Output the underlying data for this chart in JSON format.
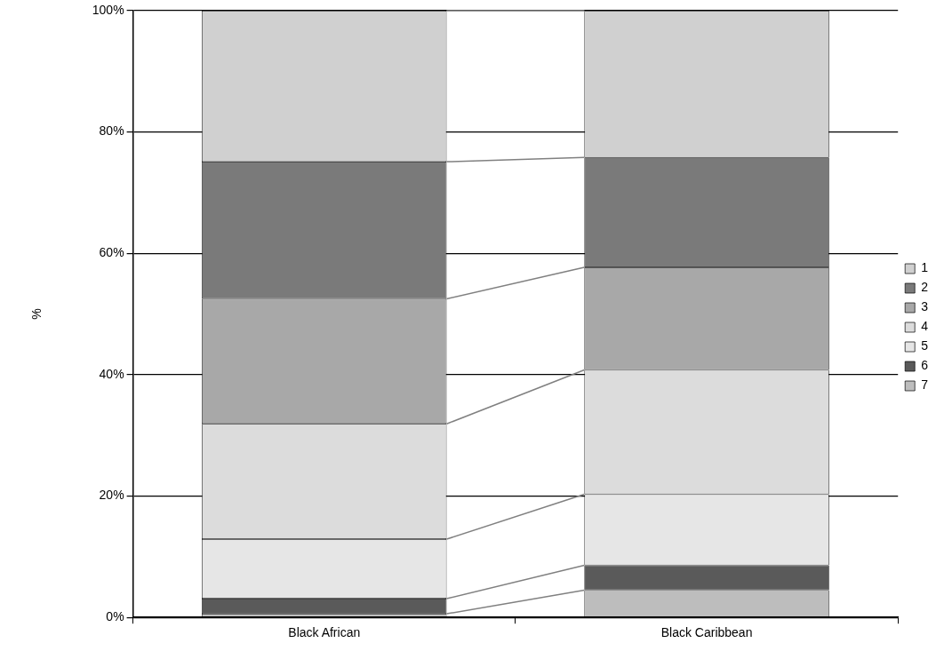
{
  "chart_data": {
    "type": "bar",
    "stacked": true,
    "ylabel": "%",
    "categories": [
      "Black African",
      "Black Caribbean"
    ],
    "series": [
      {
        "name": "7",
        "color": "#bdbdbd",
        "values": [
          0.6,
          4.5
        ]
      },
      {
        "name": "6",
        "color": "#5a5a5a",
        "values": [
          2.5,
          4.1
        ]
      },
      {
        "name": "5",
        "color": "#e6e6e6",
        "values": [
          9.8,
          11.7
        ]
      },
      {
        "name": "4",
        "color": "#dcdcdc",
        "values": [
          19.0,
          20.5
        ]
      },
      {
        "name": "3",
        "color": "#a8a8a8",
        "values": [
          20.6,
          16.9
        ]
      },
      {
        "name": "2",
        "color": "#7a7a7a",
        "values": [
          22.6,
          18.1
        ]
      },
      {
        "name": "1",
        "color": "#d0d0d0",
        "values": [
          24.9,
          24.2
        ]
      }
    ],
    "ylim": [
      0,
      100
    ],
    "yticks": [
      {
        "value": 0,
        "label": "0%"
      },
      {
        "value": 20,
        "label": "20%"
      },
      {
        "value": 40,
        "label": "40%"
      },
      {
        "value": 60,
        "label": "60%"
      },
      {
        "value": 80,
        "label": "80%"
      },
      {
        "value": 100,
        "label": "100%"
      }
    ],
    "grid": "y",
    "legend": "right"
  }
}
